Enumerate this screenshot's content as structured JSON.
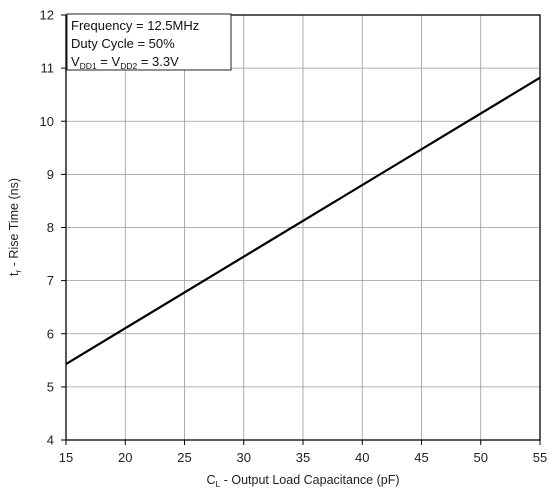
{
  "chart_data": {
    "type": "line",
    "xlabel_main": "C",
    "xlabel_sub": "L",
    "xlabel_rest": " - Output Load Capacitance (pF)",
    "ylabel_main": "t",
    "ylabel_sub": "r",
    "ylabel_rest": " - Rise Time (ns)",
    "xlim": [
      15,
      55
    ],
    "ylim": [
      4,
      12
    ],
    "x_ticks": [
      "15",
      "20",
      "25",
      "30",
      "35",
      "40",
      "45",
      "50",
      "55"
    ],
    "y_ticks": [
      "4",
      "5",
      "6",
      "7",
      "8",
      "9",
      "10",
      "11",
      "12"
    ],
    "grid": true,
    "series": [
      {
        "x": [
          15,
          55
        ],
        "y": [
          5.43,
          10.82
        ]
      }
    ],
    "annotations": {
      "line1": "Frequency = 12.5MHz",
      "line2": "Duty Cycle = 50%",
      "line3_a": "V",
      "line3_b": "DD1",
      "line3_c": " = V",
      "line3_d": "DD2",
      "line3_e": " = 3.3V"
    },
    "colors": {
      "line": "#000000",
      "grid": "#9a9a9a",
      "background": "#ffffff"
    }
  }
}
